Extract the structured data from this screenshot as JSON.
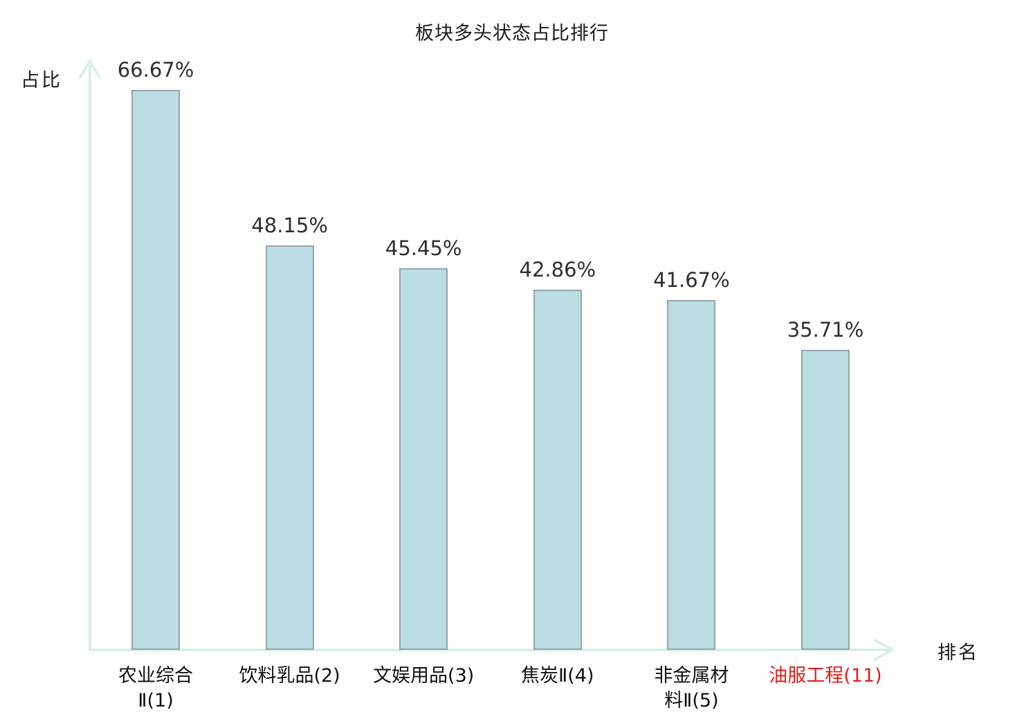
{
  "page": {
    "title": "板块多头状态占比排行"
  },
  "colors": {
    "bar_fill": "#badee2",
    "bar_border": "#94a5ab",
    "axis": "#dbeee9",
    "title_text": "#1a1a1a",
    "value_text": "#2f2f2f",
    "category_text": "#111111",
    "highlight": "#e01f1f"
  },
  "chart_data": {
    "type": "bar",
    "title": "板块多头状态占比排行",
    "ylabel": "占比",
    "xlabel": "排名",
    "categories": [
      "农业综合Ⅱ(1)",
      "饮料乳品(2)",
      "文娱用品(3)",
      "焦炭Ⅱ(4)",
      "非金属材料Ⅱ(5)",
      "油服工程(11)"
    ],
    "category_lines": [
      [
        "农业综合",
        "Ⅱ(1)"
      ],
      [
        "饮料乳品(2)"
      ],
      [
        "文娱用品(3)"
      ],
      [
        "焦炭Ⅱ(4)"
      ],
      [
        "非金属材",
        "料Ⅱ(5)"
      ],
      [
        "油服工程(11)"
      ]
    ],
    "values": [
      66.67,
      48.15,
      45.45,
      42.86,
      41.67,
      35.71
    ],
    "value_labels": [
      "66.67%",
      "48.15%",
      "45.45%",
      "42.86%",
      "41.67%",
      "35.71%"
    ],
    "highlighted_category_index": 5,
    "ylim": [
      0,
      70
    ],
    "grid": false,
    "legend": null,
    "axis_ticks": "none"
  }
}
